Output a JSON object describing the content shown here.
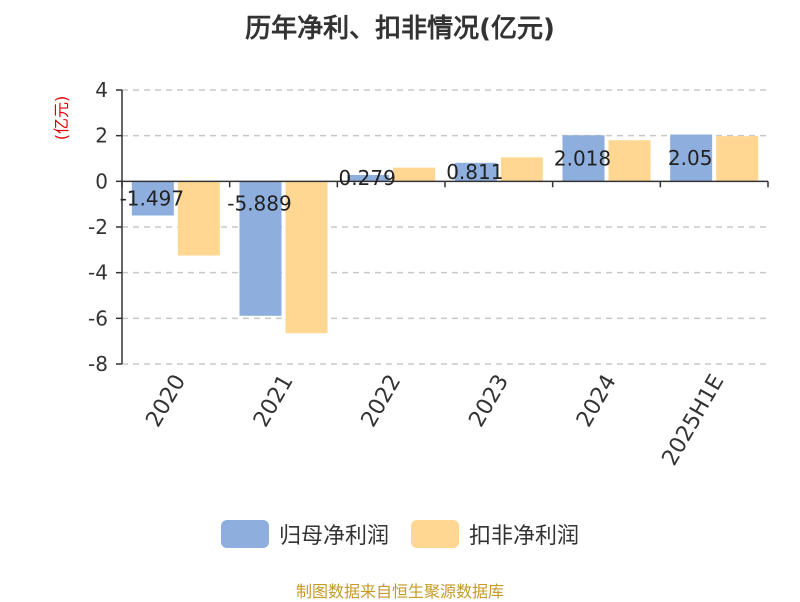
{
  "title": "历年净利、扣非情况(亿元)",
  "source": "制图数据来自恒生聚源数据库",
  "colors": {
    "series1": "#8eaedd",
    "series2": "#ffd792",
    "ylabel": "#e00000",
    "source": "#c49a29",
    "grid": "#c8c8c8",
    "axis": "#333333"
  },
  "chart_data": {
    "type": "bar",
    "title": "历年净利、扣非情况(亿元)",
    "ylabel": "(亿元)",
    "xlabel": "",
    "categories": [
      "2020",
      "2021",
      "2022",
      "2023",
      "2024",
      "2025H1E"
    ],
    "yticks": [
      4,
      2,
      0,
      -2,
      -4,
      -6,
      -8
    ],
    "ylim": [
      -8,
      4
    ],
    "grid": true,
    "legend_position": "bottom",
    "series": [
      {
        "name": "归母净利润",
        "values": [
          -1.497,
          -5.889,
          0.279,
          0.811,
          2.018,
          2.05
        ],
        "labels": [
          "-1.497",
          "-5.889",
          "0.279",
          "0.811",
          "2.018",
          "2.05"
        ]
      },
      {
        "name": "扣非净利润",
        "values": [
          -3.25,
          -6.65,
          0.6,
          1.05,
          1.8,
          1.98
        ]
      }
    ]
  }
}
